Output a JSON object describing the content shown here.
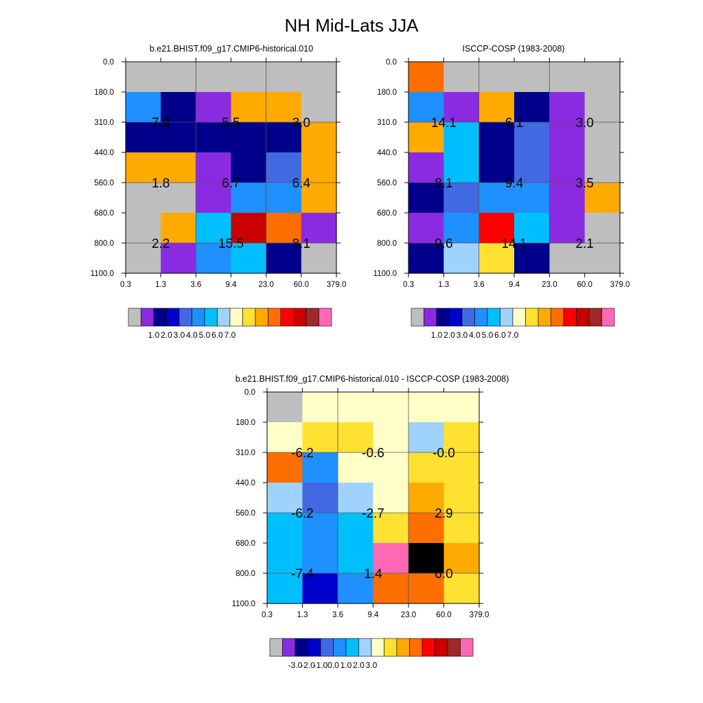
{
  "figure": {
    "title": "NH Mid-Lats JJA"
  },
  "chart_data": [
    {
      "id": "model",
      "type": "heatmap",
      "title": "b.e21.BHIST.f09_g17.CMIP6-historical.010",
      "x_ticks": [
        "0.3",
        "1.3",
        "3.6",
        "9.4",
        "23.0",
        "60.0",
        "379.0"
      ],
      "y_ticks": [
        "0.0",
        "180.0",
        "310.0",
        "440.0",
        "560.0",
        "680.0",
        "800.0",
        "1100.0"
      ],
      "xlabel": "",
      "ylabel": "",
      "cells": [
        [
          "g",
          "g",
          "g",
          "g",
          "g",
          "g"
        ],
        [
          4,
          1,
          0,
          9,
          9,
          "g"
        ],
        [
          1,
          1,
          1,
          1,
          1,
          9
        ],
        [
          9,
          9,
          0,
          1,
          3,
          9
        ],
        [
          "g",
          "g",
          0,
          4,
          4,
          9
        ],
        [
          "g",
          9,
          5,
          12,
          10,
          0
        ],
        [
          "g",
          0,
          4,
          5,
          1,
          "g"
        ]
      ],
      "labels": [
        {
          "value": "7.9",
          "col": 0,
          "row": 1
        },
        {
          "value": "5.5",
          "col": 2,
          "row": 1
        },
        {
          "value": "3.0",
          "col": 4,
          "row": 1
        },
        {
          "value": "1.8",
          "col": 0,
          "row": 3
        },
        {
          "value": "6.7",
          "col": 2,
          "row": 3
        },
        {
          "value": "6.4",
          "col": 4,
          "row": 3
        },
        {
          "value": "2.2",
          "col": 0,
          "row": 5
        },
        {
          "value": "15.5",
          "col": 2,
          "row": 5
        },
        {
          "value": "8.1",
          "col": 4,
          "row": 5
        }
      ],
      "colorbar": {
        "ticks": [
          "1.0",
          "2.0",
          "3.0",
          "4.0",
          "5.0",
          "6.0",
          "7.0"
        ],
        "colors": [
          "#bebebe",
          "#8a2be2",
          "#00008b",
          "#0000cd",
          "#4169e1",
          "#1e90ff",
          "#00bfff",
          "#a0d2ff",
          "#ffffc8",
          "#ffe132",
          "#ffaa00",
          "#ff6e00",
          "#ff0000",
          "#c80000",
          "#a02828",
          "#ff69b4"
        ]
      }
    },
    {
      "id": "obs",
      "type": "heatmap",
      "title": "ISCCP-COSP (1983-2008)",
      "x_ticks": [
        "0.3",
        "1.3",
        "3.6",
        "9.4",
        "23.0",
        "60.0",
        "379.0"
      ],
      "y_ticks": [
        "0.0",
        "180.0",
        "310.0",
        "440.0",
        "560.0",
        "680.0",
        "800.0",
        "1100.0"
      ],
      "xlabel": "",
      "ylabel": "",
      "cells": [
        [
          10,
          "g",
          "g",
          "g",
          "g",
          "g"
        ],
        [
          4,
          0,
          9,
          1,
          0,
          "g"
        ],
        [
          9,
          5,
          1,
          3,
          0,
          "g"
        ],
        [
          0,
          5,
          1,
          3,
          0,
          "g"
        ],
        [
          1,
          3,
          4,
          4,
          0,
          9
        ],
        [
          0,
          4,
          11,
          5,
          0,
          "g"
        ],
        [
          1,
          6,
          8,
          1,
          "g",
          "g"
        ]
      ],
      "labels": [
        {
          "value": "14.1",
          "col": 0,
          "row": 1
        },
        {
          "value": "6.1",
          "col": 2,
          "row": 1
        },
        {
          "value": "3.0",
          "col": 4,
          "row": 1
        },
        {
          "value": "8.1",
          "col": 0,
          "row": 3
        },
        {
          "value": "9.4",
          "col": 2,
          "row": 3
        },
        {
          "value": "3.5",
          "col": 4,
          "row": 3
        },
        {
          "value": "9.6",
          "col": 0,
          "row": 5
        },
        {
          "value": "14.1",
          "col": 2,
          "row": 5
        },
        {
          "value": "2.1",
          "col": 4,
          "row": 5
        }
      ],
      "colorbar": {
        "ticks": [
          "1.0",
          "2.0",
          "3.0",
          "4.0",
          "5.0",
          "6.0",
          "7.0"
        ],
        "colors": [
          "#bebebe",
          "#8a2be2",
          "#00008b",
          "#0000cd",
          "#4169e1",
          "#1e90ff",
          "#00bfff",
          "#a0d2ff",
          "#ffffc8",
          "#ffe132",
          "#ffaa00",
          "#ff6e00",
          "#ff0000",
          "#c80000",
          "#a02828",
          "#ff69b4"
        ]
      }
    },
    {
      "id": "diff",
      "type": "heatmap",
      "title": "b.e21.BHIST.f09_g17.CMIP6-historical.010 - ISCCP-COSP (1983-2008)",
      "x_ticks": [
        "0.3",
        "1.3",
        "3.6",
        "9.4",
        "23.0",
        "60.0",
        "379.0"
      ],
      "y_ticks": [
        "0.0",
        "180.0",
        "310.0",
        "440.0",
        "560.0",
        "680.0",
        "800.0",
        "1100.0"
      ],
      "xlabel": "",
      "ylabel": "",
      "cells": [
        [
          "g",
          7,
          7,
          7,
          7,
          7
        ],
        [
          7,
          8,
          8,
          7,
          6,
          8
        ],
        [
          10,
          4,
          7,
          7,
          8,
          8
        ],
        [
          6,
          3,
          6,
          7,
          9,
          8
        ],
        [
          5,
          4,
          5,
          8,
          10,
          8
        ],
        [
          5,
          4,
          5,
          14,
          15,
          9
        ],
        [
          5,
          2,
          4,
          10,
          10,
          8
        ]
      ],
      "labels": [
        {
          "value": "-6.2",
          "col": 0,
          "row": 1
        },
        {
          "value": "-0.6",
          "col": 2,
          "row": 1
        },
        {
          "value": "-0.0",
          "col": 4,
          "row": 1
        },
        {
          "value": "-6.2",
          "col": 0,
          "row": 3
        },
        {
          "value": "-2.7",
          "col": 2,
          "row": 3
        },
        {
          "value": "2.9",
          "col": 4,
          "row": 3
        },
        {
          "value": "-7.4",
          "col": 0,
          "row": 5
        },
        {
          "value": "1.4",
          "col": 2,
          "row": 5
        },
        {
          "value": "6.0",
          "col": 4,
          "row": 5
        }
      ],
      "colorbar": {
        "ticks": [
          "-3.0",
          "-2.0",
          "-1.0",
          "0.0",
          "1.0",
          "2.0",
          "3.0"
        ],
        "colors": [
          "#bebebe",
          "#8a2be2",
          "#00008b",
          "#0000cd",
          "#4169e1",
          "#1e90ff",
          "#00bfff",
          "#a0d2ff",
          "#ffffc8",
          "#ffe132",
          "#ffaa00",
          "#ff6e00",
          "#ff0000",
          "#c80000",
          "#a02828",
          "#ff69b4"
        ]
      }
    }
  ]
}
